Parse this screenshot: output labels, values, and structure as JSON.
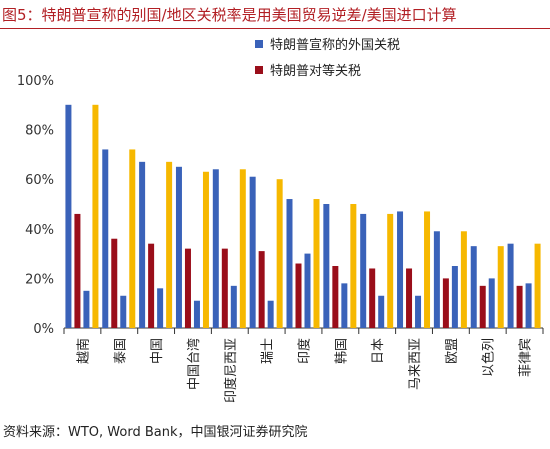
{
  "title": "图5：特朗普宣称的别国/地区关税率是用美国贸易逆差/美国进口计算",
  "source": "资料来源：WTO, Word Bank，中国银河证券研究院",
  "colors": {
    "title": "#b21f24",
    "blue": "#3a62b9",
    "red": "#9a0e1a",
    "gold": "#f6b800",
    "axis": "#333333"
  },
  "chart_data": {
    "type": "bar",
    "categories": [
      "越南",
      "泰国",
      "中国",
      "中国台湾",
      "印度尼西亚",
      "瑞士",
      "印度",
      "韩国",
      "日本",
      "马来西亚",
      "欧盟",
      "以色列",
      "菲律宾"
    ],
    "ylim": [
      0,
      100
    ],
    "yticks": [
      "0%",
      "20%",
      "40%",
      "60%",
      "80%",
      "100%"
    ],
    "legend_position": "top-right",
    "series": [
      {
        "name": "特朗普宣称的外国关税",
        "color": "#3a62b9",
        "values": [
          90,
          72,
          67,
          65,
          64,
          61,
          52,
          50,
          46,
          47,
          39,
          33,
          34
        ]
      },
      {
        "name": "特朗普对等关税",
        "color": "#9a0e1a",
        "values": [
          46,
          36,
          34,
          32,
          32,
          31,
          26,
          25,
          24,
          24,
          20,
          17,
          17
        ]
      },
      {
        "name": "",
        "color": "#3a62b9",
        "values": [
          15,
          13,
          16,
          11,
          17,
          11,
          30,
          18,
          13,
          13,
          25,
          20,
          18
        ]
      },
      {
        "name": "",
        "color": "#f6b800",
        "values": [
          90,
          72,
          67,
          63,
          64,
          60,
          52,
          50,
          46,
          47,
          39,
          33,
          34
        ]
      }
    ]
  }
}
